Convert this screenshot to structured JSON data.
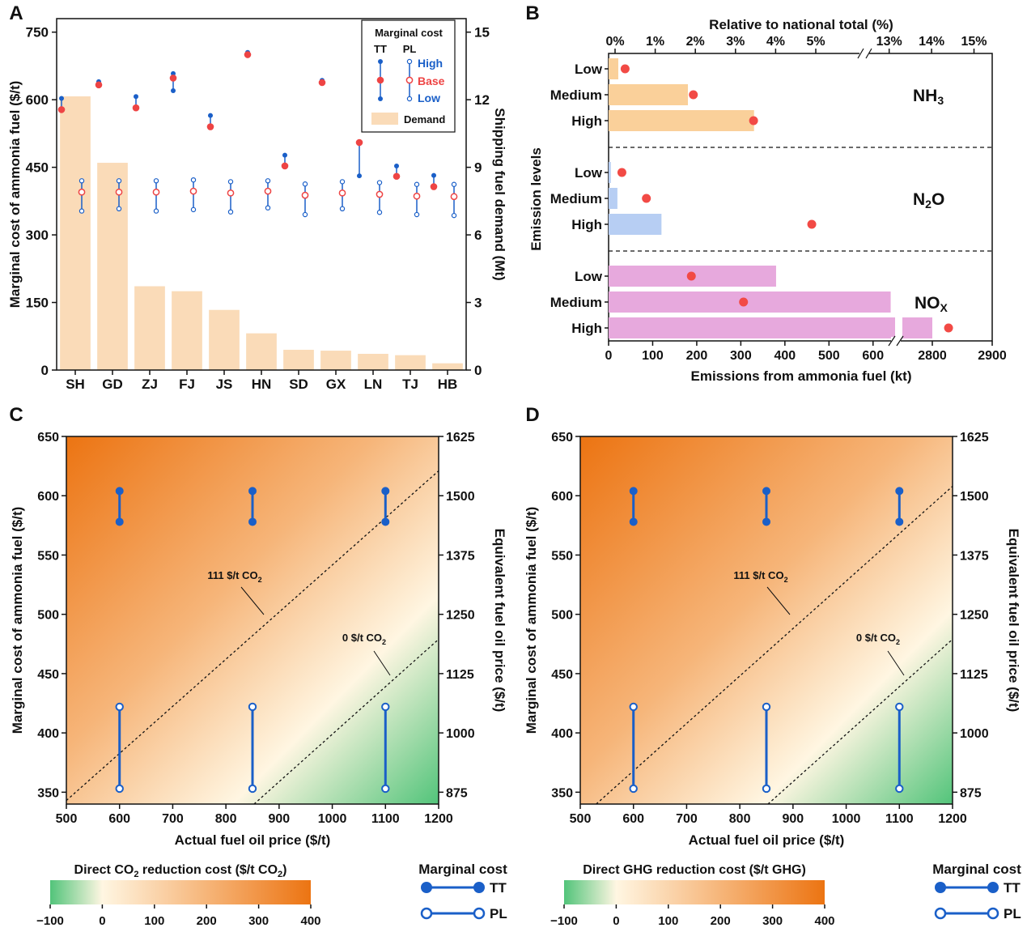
{
  "colors": {
    "demand_bar": "#FADBB8",
    "tt": "#1A5FC8",
    "base": "#EE4444",
    "nh3_bar": "#FAD09A",
    "n2o_bar": "#B7CEF3",
    "nox_bar": "#E7A9DD",
    "dot": "#F24A45",
    "cmap_low": "#52C47A",
    "cmap_zero": "#FFF6E2",
    "cmap_high": "#EC7412"
  },
  "panels": {
    "a": "A",
    "b": "B",
    "c": "C",
    "d": "D"
  },
  "chart_data": [
    {
      "id": "A",
      "type": "bar",
      "title": "",
      "xlabel": "",
      "ylabel": "Marginal cost of ammonia fuel ($/t)",
      "ylabel_right": "Shipping fuel demand (Mt)",
      "ylim": [
        0,
        780
      ],
      "ylim_right": [
        0,
        15.6
      ],
      "yticks": [
        "0",
        "150",
        "300",
        "450",
        "600",
        "750"
      ],
      "yticks_right": [
        "0",
        "3",
        "6",
        "9",
        "12",
        "15"
      ],
      "categories": [
        "SH",
        "GD",
        "ZJ",
        "FJ",
        "JS",
        "HN",
        "SD",
        "GX",
        "LN",
        "TJ",
        "HB"
      ],
      "demand": [
        12.15,
        9.2,
        3.72,
        3.5,
        2.67,
        1.63,
        0.9,
        0.86,
        0.72,
        0.66,
        0.3
      ],
      "tt_high": [
        603,
        640,
        607,
        658,
        565,
        705,
        477,
        643,
        505,
        453,
        432
      ],
      "tt_base": [
        578,
        633,
        582,
        648,
        540,
        700,
        453,
        638,
        505,
        430,
        407
      ],
      "tt_low": [
        578,
        633,
        582,
        620,
        540,
        700,
        453,
        638,
        431,
        430,
        407
      ],
      "pl_high": [
        420,
        420,
        420,
        422,
        418,
        420,
        413,
        418,
        416,
        412,
        412
      ],
      "pl_base": [
        395,
        395,
        395,
        397,
        393,
        397,
        388,
        393,
        390,
        386,
        385
      ],
      "pl_low": [
        353,
        358,
        353,
        356,
        351,
        360,
        345,
        358,
        350,
        345,
        343
      ],
      "legend": {
        "title": "Marginal cost",
        "tt": "TT",
        "pl": "PL",
        "high": "High",
        "base": "Base",
        "low": "Low",
        "demand": "Demand"
      }
    },
    {
      "id": "B",
      "type": "bar",
      "orientation": "horizontal",
      "xlabel": "Emissions from ammonia fuel (kt)",
      "xlabel_top": "Relative to national total (%)",
      "ylabel": "Emission levels",
      "xticks_bottom": [
        "0",
        "100",
        "200",
        "300",
        "400",
        "500",
        "600",
        "2800",
        "2900"
      ],
      "xticks_top": [
        "0%",
        "1%",
        "2%",
        "3%",
        "4%",
        "5%",
        "13%",
        "14%",
        "15%"
      ],
      "groups": [
        {
          "label": "NH",
          "sub": "3",
          "levels": [
            "Low",
            "Medium",
            "High"
          ],
          "values_kt": [
            22,
            180,
            330
          ],
          "values_pct": [
            0.25,
            1.95,
            3.45
          ]
        },
        {
          "label": "N",
          "sub": "2",
          "label_suffix": "O",
          "levels": [
            "Low",
            "Medium",
            "High"
          ],
          "values_kt": [
            5,
            20,
            120
          ],
          "values_pct": [
            0.17,
            0.78,
            4.9
          ]
        },
        {
          "label": "NO",
          "sub": "X",
          "levels": [
            "Low",
            "Medium",
            "High"
          ],
          "values_kt": [
            380,
            640,
            2800
          ],
          "values_pct": [
            1.9,
            3.2,
            14.4
          ]
        }
      ]
    },
    {
      "id": "C",
      "type": "heatmap",
      "xlabel": "Actual fuel oil price ($/t)",
      "ylabel": "Marginal cost of ammonia fuel ($/t)",
      "ylabel_right": "Equivalent fuel oil price ($/t)",
      "xlim": [
        500,
        1200
      ],
      "ylim": [
        340,
        650
      ],
      "xticks": [
        "500",
        "600",
        "700",
        "800",
        "900",
        "1000",
        "1100",
        "1200"
      ],
      "yticks": [
        "350",
        "400",
        "450",
        "500",
        "550",
        "600",
        "650"
      ],
      "yticks_right": [
        "875",
        "1000",
        "1125",
        "1250",
        "1375",
        "1500",
        "1625"
      ],
      "contour_111": {
        "label": "111 $/t CO",
        "sub": "2",
        "from": [
          500,
          343
        ],
        "to": [
          1200,
          621
        ]
      },
      "contour_0": {
        "label": "0 $/t CO",
        "sub": "2",
        "from": [
          853,
          340
        ],
        "to": [
          1200,
          479
        ]
      },
      "tt_pairs": [
        {
          "x": 600,
          "high": 604,
          "low": 578
        },
        {
          "x": 850,
          "high": 604,
          "low": 578
        },
        {
          "x": 1100,
          "high": 604,
          "low": 578
        }
      ],
      "pl_pairs": [
        {
          "x": 600,
          "high": 422,
          "low": 353
        },
        {
          "x": 850,
          "high": 422,
          "low": 353
        },
        {
          "x": 1100,
          "high": 422,
          "low": 353
        }
      ],
      "colorbar": {
        "title_pre": "Direct CO",
        "title_sub": "2",
        "title_post": " reduction cost ($/t CO",
        "title_sub2": "2",
        "title_end": ")",
        "ticks": [
          "−100",
          "0",
          "100",
          "200",
          "300",
          "400"
        ]
      },
      "legend": {
        "title": "Marginal cost",
        "tt": "TT",
        "pl": "PL"
      }
    },
    {
      "id": "D",
      "type": "heatmap",
      "xlabel": "Actual fuel oil price ($/t)",
      "ylabel": "Marginal cost of ammonia fuel ($/t)",
      "ylabel_right": "Equivalent fuel oil price ($/t)",
      "xlim": [
        500,
        1200
      ],
      "ylim": [
        340,
        650
      ],
      "xticks": [
        "500",
        "600",
        "700",
        "800",
        "900",
        "1000",
        "1100",
        "1200"
      ],
      "yticks": [
        "350",
        "400",
        "450",
        "500",
        "550",
        "600",
        "650"
      ],
      "yticks_right": [
        "875",
        "1000",
        "1125",
        "1250",
        "1375",
        "1500",
        "1625"
      ],
      "contour_111": {
        "label": "111 $/t CO",
        "sub": "2",
        "from": [
          530,
          340
        ],
        "to": [
          1200,
          608
        ]
      },
      "contour_0": {
        "label": "0 $/t CO",
        "sub": "2",
        "from": [
          853,
          340
        ],
        "to": [
          1200,
          479
        ]
      },
      "tt_pairs": [
        {
          "x": 600,
          "high": 604,
          "low": 578
        },
        {
          "x": 850,
          "high": 604,
          "low": 578
        },
        {
          "x": 1100,
          "high": 604,
          "low": 578
        }
      ],
      "pl_pairs": [
        {
          "x": 600,
          "high": 422,
          "low": 353
        },
        {
          "x": 850,
          "high": 422,
          "low": 353
        },
        {
          "x": 1100,
          "high": 422,
          "low": 353
        }
      ],
      "colorbar": {
        "title_pre": "Direct GHG reduction cost ($/t GHG)",
        "title_sub": "",
        "title_post": "",
        "title_sub2": "",
        "title_end": "",
        "ticks": [
          "−100",
          "0",
          "100",
          "200",
          "300",
          "400"
        ]
      },
      "legend": {
        "title": "Marginal cost",
        "tt": "TT",
        "pl": "PL"
      }
    }
  ]
}
